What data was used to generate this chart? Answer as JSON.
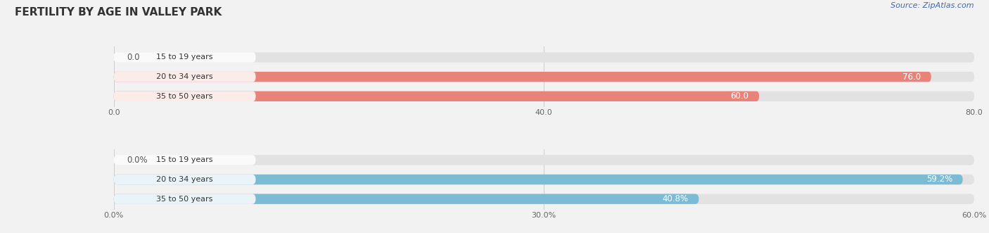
{
  "title": "FERTILITY BY AGE IN VALLEY PARK",
  "source": "Source: ZipAtlas.com",
  "top_chart": {
    "categories": [
      "15 to 19 years",
      "20 to 34 years",
      "35 to 50 years"
    ],
    "values": [
      0.0,
      76.0,
      60.0
    ],
    "bar_color": "#E8837A",
    "xlim": [
      0,
      80.0
    ],
    "xticks": [
      0.0,
      40.0,
      80.0
    ],
    "xticklabels": [
      "0.0",
      "40.0",
      "80.0"
    ],
    "label_suffix": ""
  },
  "bottom_chart": {
    "categories": [
      "15 to 19 years",
      "20 to 34 years",
      "35 to 50 years"
    ],
    "values": [
      0.0,
      59.2,
      40.8
    ],
    "bar_color": "#7BBCD4",
    "xlim": [
      0,
      60.0
    ],
    "xticks": [
      0.0,
      30.0,
      60.0
    ],
    "xticklabels": [
      "0.0%",
      "30.0%",
      "60.0%"
    ],
    "label_suffix": "%"
  },
  "bg_color": "#f2f2f2",
  "bar_bg_color": "#e2e2e2",
  "label_font_size": 8.5,
  "category_font_size": 8,
  "tick_font_size": 8,
  "title_font_size": 11,
  "source_font_size": 8
}
